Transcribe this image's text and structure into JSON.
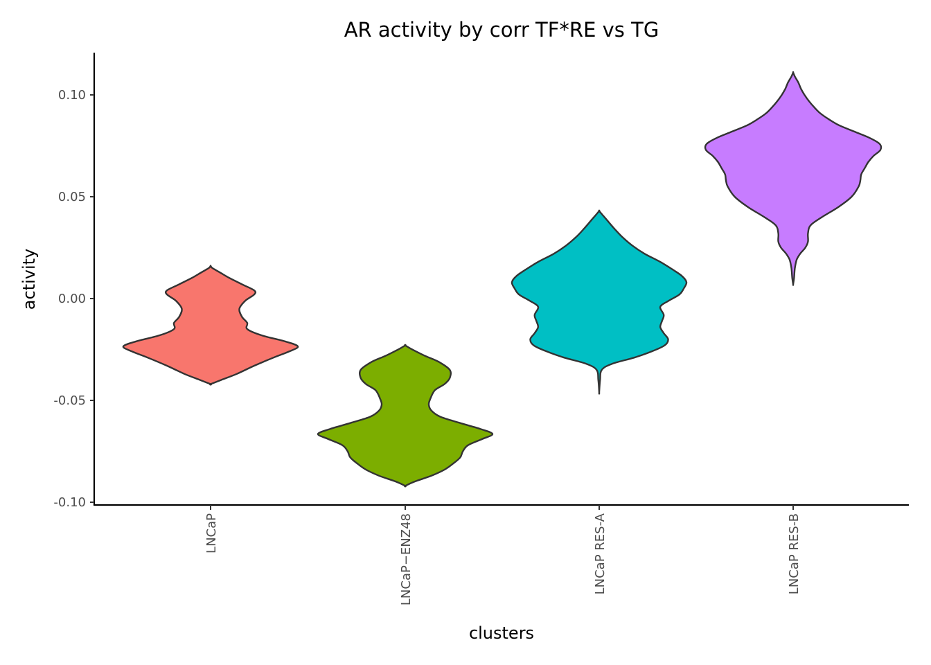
{
  "chart_data": {
    "type": "violin",
    "title": "AR activity by corr TF*RE vs TG",
    "xlabel": "clusters",
    "ylabel": "activity",
    "ylim": [
      -0.101,
      0.12
    ],
    "yticks": [
      0.1,
      0.05,
      0.0,
      -0.05,
      -0.1
    ],
    "ytick_labels": [
      "0.10",
      "0.05",
      "0.00",
      "-0.05",
      "-0.10"
    ],
    "categories": [
      "LNCaP",
      "LNCaP−ENZ48",
      "LNCaP RES-A",
      "LNCaP RES-B"
    ],
    "grid": false,
    "legend": "none",
    "series": [
      {
        "category": "LNCaP",
        "color": "#F8766D",
        "min": -0.042,
        "max": 0.016,
        "profile": [
          [
            -0.042,
            0.0
          ],
          [
            -0.04,
            0.12
          ],
          [
            -0.037,
            0.3
          ],
          [
            -0.033,
            0.5
          ],
          [
            -0.029,
            0.72
          ],
          [
            -0.026,
            0.9
          ],
          [
            -0.0235,
            1.0
          ],
          [
            -0.021,
            0.85
          ],
          [
            -0.018,
            0.58
          ],
          [
            -0.015,
            0.42
          ],
          [
            -0.012,
            0.42
          ],
          [
            -0.009,
            0.36
          ],
          [
            -0.005,
            0.33
          ],
          [
            -0.001,
            0.4
          ],
          [
            0.002,
            0.5
          ],
          [
            0.004,
            0.5
          ],
          [
            0.007,
            0.36
          ],
          [
            0.01,
            0.22
          ],
          [
            0.013,
            0.1
          ],
          [
            0.015,
            0.02
          ],
          [
            0.016,
            0.0
          ]
        ]
      },
      {
        "category": "LNCaP−ENZ48",
        "color": "#7CAE00",
        "min": -0.092,
        "max": -0.023,
        "profile": [
          [
            -0.092,
            0.0
          ],
          [
            -0.09,
            0.1
          ],
          [
            -0.087,
            0.3
          ],
          [
            -0.084,
            0.45
          ],
          [
            -0.081,
            0.55
          ],
          [
            -0.078,
            0.63
          ],
          [
            -0.075,
            0.66
          ],
          [
            -0.072,
            0.72
          ],
          [
            -0.069,
            0.88
          ],
          [
            -0.0665,
            1.0
          ],
          [
            -0.064,
            0.86
          ],
          [
            -0.061,
            0.62
          ],
          [
            -0.058,
            0.4
          ],
          [
            -0.055,
            0.3
          ],
          [
            -0.052,
            0.27
          ],
          [
            -0.049,
            0.29
          ],
          [
            -0.045,
            0.34
          ],
          [
            -0.042,
            0.45
          ],
          [
            -0.039,
            0.51
          ],
          [
            -0.035,
            0.51
          ],
          [
            -0.031,
            0.38
          ],
          [
            -0.028,
            0.22
          ],
          [
            -0.025,
            0.08
          ],
          [
            -0.023,
            0.0
          ]
        ]
      },
      {
        "category": "LNCaP RES-A",
        "color": "#00BFC4",
        "min": -0.046,
        "max": 0.043,
        "profile": [
          [
            -0.046,
            0.0
          ],
          [
            -0.04,
            0.01
          ],
          [
            -0.035,
            0.03
          ],
          [
            -0.032,
            0.15
          ],
          [
            -0.029,
            0.4
          ],
          [
            -0.026,
            0.6
          ],
          [
            -0.023,
            0.75
          ],
          [
            -0.02,
            0.79
          ],
          [
            -0.017,
            0.74
          ],
          [
            -0.014,
            0.7
          ],
          [
            -0.011,
            0.72
          ],
          [
            -0.008,
            0.74
          ],
          [
            -0.004,
            0.7
          ],
          [
            -0.001,
            0.8
          ],
          [
            0.002,
            0.92
          ],
          [
            0.005,
            0.97
          ],
          [
            0.008,
            1.0
          ],
          [
            0.011,
            0.95
          ],
          [
            0.014,
            0.85
          ],
          [
            0.018,
            0.7
          ],
          [
            0.022,
            0.52
          ],
          [
            0.026,
            0.38
          ],
          [
            0.03,
            0.27
          ],
          [
            0.034,
            0.18
          ],
          [
            0.038,
            0.1
          ],
          [
            0.041,
            0.04
          ],
          [
            0.043,
            0.0
          ]
        ]
      },
      {
        "category": "LNCaP RES-B",
        "color": "#C77CFF",
        "min": 0.007,
        "max": 0.111,
        "profile": [
          [
            0.007,
            0.0
          ],
          [
            0.01,
            0.01
          ],
          [
            0.015,
            0.02
          ],
          [
            0.019,
            0.04
          ],
          [
            0.022,
            0.08
          ],
          [
            0.025,
            0.14
          ],
          [
            0.028,
            0.17
          ],
          [
            0.032,
            0.17
          ],
          [
            0.036,
            0.2
          ],
          [
            0.04,
            0.33
          ],
          [
            0.045,
            0.52
          ],
          [
            0.05,
            0.67
          ],
          [
            0.055,
            0.75
          ],
          [
            0.058,
            0.77
          ],
          [
            0.061,
            0.78
          ],
          [
            0.064,
            0.82
          ],
          [
            0.067,
            0.86
          ],
          [
            0.07,
            0.92
          ],
          [
            0.073,
            1.0
          ],
          [
            0.076,
            0.99
          ],
          [
            0.079,
            0.87
          ],
          [
            0.082,
            0.7
          ],
          [
            0.085,
            0.53
          ],
          [
            0.088,
            0.41
          ],
          [
            0.091,
            0.31
          ],
          [
            0.094,
            0.24
          ],
          [
            0.097,
            0.18
          ],
          [
            0.1,
            0.13
          ],
          [
            0.103,
            0.09
          ],
          [
            0.106,
            0.06
          ],
          [
            0.109,
            0.02
          ],
          [
            0.111,
            0.0
          ]
        ]
      }
    ]
  }
}
